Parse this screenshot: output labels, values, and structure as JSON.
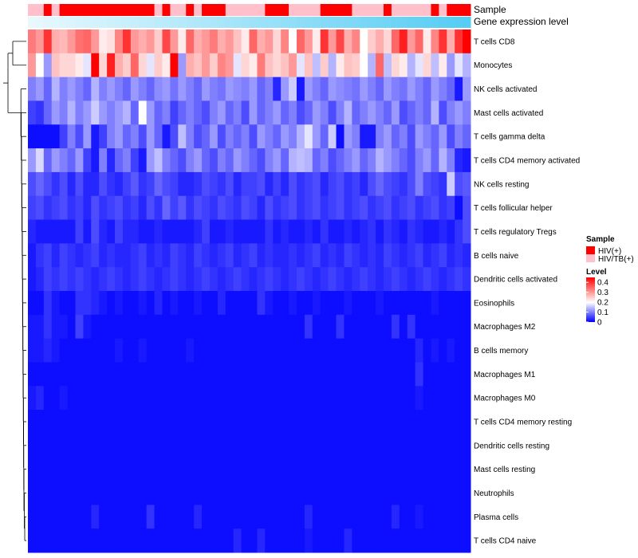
{
  "chart_data": {
    "type": "heatmap",
    "annotation_labels": {
      "sample": "Sample",
      "gene_expression": "Gene expression level"
    },
    "legend": {
      "sample_title": "Sample",
      "sample_entries": [
        {
          "label": "HIV(+)",
          "color": "#ff0000"
        },
        {
          "label": "HIV/TB(+)",
          "color": "#ffc0cb"
        }
      ],
      "level_title": "Level",
      "level_ticks": [
        "0.4",
        "0.3",
        "0.2",
        "0.1",
        "0"
      ],
      "level_range": [
        0,
        0.45
      ]
    },
    "color_scale": {
      "low": "#0000ff",
      "mid": "#ffffff",
      "high": "#ff0000",
      "mid_value": 0.2,
      "max_value": 0.45
    },
    "expression_gradient": [
      "#e9f8fd",
      "#55cdf4"
    ],
    "rows": [
      "T cells CD8",
      "Monocytes",
      "NK cells activated",
      "Mast cells activated",
      "T cells gamma delta",
      "T cells CD4 memory activated",
      "NK cells resting",
      "T cells follicular helper",
      "T cells regulatory  Tregs",
      "B cells naive",
      "Dendritic cells activated",
      "Eosinophils",
      "Macrophages M2",
      "B cells memory",
      "Macrophages M1",
      "Macrophages M0",
      "T cells CD4 memory resting",
      "Dendritic cells resting",
      "Mast cells resting",
      "Neutrophils",
      "Plasma cells",
      "T cells CD4 naive"
    ],
    "sample_groups": [
      "HIV/TB(+)",
      "HIV/TB(+)",
      "HIV(+)",
      "HIV/TB(+)",
      "HIV(+)",
      "HIV(+)",
      "HIV(+)",
      "HIV(+)",
      "HIV(+)",
      "HIV(+)",
      "HIV(+)",
      "HIV(+)",
      "HIV(+)",
      "HIV(+)",
      "HIV(+)",
      "HIV(+)",
      "HIV/TB(+)",
      "HIV(+)",
      "HIV/TB(+)",
      "HIV/TB(+)",
      "HIV(+)",
      "HIV/TB(+)",
      "HIV(+)",
      "HIV(+)",
      "HIV(+)",
      "HIV/TB(+)",
      "HIV/TB(+)",
      "HIV/TB(+)",
      "HIV/TB(+)",
      "HIV/TB(+)",
      "HIV(+)",
      "HIV(+)",
      "HIV(+)",
      "HIV/TB(+)",
      "HIV/TB(+)",
      "HIV/TB(+)",
      "HIV/TB(+)",
      "HIV(+)",
      "HIV(+)",
      "HIV(+)",
      "HIV(+)",
      "HIV/TB(+)",
      "HIV/TB(+)",
      "HIV/TB(+)",
      "HIV/TB(+)",
      "HIV(+)",
      "HIV/TB(+)",
      "HIV/TB(+)",
      "HIV/TB(+)",
      "HIV/TB(+)",
      "HIV/TB(+)",
      "HIV(+)",
      "HIV/TB(+)",
      "HIV(+)",
      "HIV(+)",
      "HIV(+)"
    ],
    "values": [
      [
        0.33,
        0.3,
        0.4,
        0.28,
        0.27,
        0.3,
        0.34,
        0.35,
        0.3,
        0.22,
        0.23,
        0.32,
        0.4,
        0.3,
        0.28,
        0.3,
        0.25,
        0.38,
        0.3,
        0.22,
        0.35,
        0.28,
        0.3,
        0.33,
        0.28,
        0.3,
        0.26,
        0.22,
        0.35,
        0.28,
        0.3,
        0.24,
        0.32,
        0.2,
        0.35,
        0.3,
        0.22,
        0.4,
        0.3,
        0.38,
        0.28,
        0.32,
        0.2,
        0.25,
        0.28,
        0.24,
        0.35,
        0.42,
        0.3,
        0.35,
        0.22,
        0.32,
        0.4,
        0.28,
        0.4,
        0.45
      ],
      [
        0.3,
        0.2,
        0.12,
        0.26,
        0.24,
        0.24,
        0.22,
        0.18,
        0.45,
        0.24,
        0.42,
        0.28,
        0.25,
        0.35,
        0.24,
        0.18,
        0.25,
        0.22,
        0.45,
        0.12,
        0.28,
        0.26,
        0.3,
        0.25,
        0.32,
        0.3,
        0.18,
        0.24,
        0.22,
        0.33,
        0.26,
        0.24,
        0.26,
        0.3,
        0.18,
        0.26,
        0.15,
        0.25,
        0.14,
        0.22,
        0.26,
        0.25,
        0.2,
        0.14,
        0.35,
        0.15,
        0.24,
        0.22,
        0.14,
        0.18,
        0.24,
        0.15,
        0.22,
        0.12,
        0.18,
        0.14
      ],
      [
        0.1,
        0.12,
        0.08,
        0.14,
        0.1,
        0.12,
        0.1,
        0.08,
        0.14,
        0.1,
        0.12,
        0.1,
        0.08,
        0.12,
        0.1,
        0.08,
        0.11,
        0.12,
        0.09,
        0.12,
        0.1,
        0.08,
        0.12,
        0.1,
        0.09,
        0.12,
        0.11,
        0.1,
        0.12,
        0.08,
        0.1,
        0.03,
        0.12,
        0.16,
        0.02,
        0.12,
        0.1,
        0.08,
        0.12,
        0.11,
        0.1,
        0.09,
        0.12,
        0.1,
        0.08,
        0.12,
        0.1,
        0.09,
        0.12,
        0.1,
        0.08,
        0.12,
        0.1,
        0.08,
        0.02,
        0.12
      ],
      [
        0.05,
        0.04,
        0.08,
        0.12,
        0.1,
        0.14,
        0.1,
        0.12,
        0.16,
        0.12,
        0.1,
        0.12,
        0.14,
        0.08,
        0.2,
        0.12,
        0.08,
        0.1,
        0.05,
        0.08,
        0.1,
        0.08,
        0.06,
        0.1,
        0.12,
        0.08,
        0.1,
        0.06,
        0.12,
        0.08,
        0.1,
        0.12,
        0.08,
        0.1,
        0.06,
        0.08,
        0.12,
        0.1,
        0.06,
        0.1,
        0.14,
        0.08,
        0.1,
        0.12,
        0.1,
        0.08,
        0.12,
        0.06,
        0.08,
        0.1,
        0.08,
        0.14,
        0.06,
        0.1,
        0.12,
        0.1
      ],
      [
        0.01,
        0.01,
        0.01,
        0.01,
        0.05,
        0.1,
        0.06,
        0.12,
        0.02,
        0.05,
        0.1,
        0.12,
        0.08,
        0.1,
        0.06,
        0.12,
        0.08,
        0.02,
        0.06,
        0.15,
        0.1,
        0.06,
        0.08,
        0.12,
        0.06,
        0.1,
        0.08,
        0.1,
        0.06,
        0.12,
        0.1,
        0.08,
        0.12,
        0.1,
        0.14,
        0.18,
        0.12,
        0.08,
        0.16,
        0.01,
        0.12,
        0.1,
        0.02,
        0.02,
        0.1,
        0.12,
        0.08,
        0.1,
        0.06,
        0.12,
        0.1,
        0.08,
        0.12,
        0.06,
        0.1,
        0.08
      ],
      [
        0.12,
        0.17,
        0.08,
        0.12,
        0.1,
        0.08,
        0.12,
        0.05,
        0.02,
        0.1,
        0.03,
        0.08,
        0.1,
        0.05,
        0.02,
        0.12,
        0.15,
        0.1,
        0.08,
        0.06,
        0.1,
        0.12,
        0.08,
        0.06,
        0.1,
        0.08,
        0.12,
        0.1,
        0.08,
        0.06,
        0.1,
        0.12,
        0.08,
        0.14,
        0.15,
        0.14,
        0.08,
        0.1,
        0.06,
        0.08,
        0.1,
        0.12,
        0.08,
        0.1,
        0.14,
        0.12,
        0.1,
        0.08,
        0.06,
        0.1,
        0.12,
        0.08,
        0.14,
        0.1,
        0.03,
        0.02
      ],
      [
        0.06,
        0.08,
        0.06,
        0.04,
        0.06,
        0.03,
        0.06,
        0.03,
        0.03,
        0.06,
        0.04,
        0.03,
        0.05,
        0.07,
        0.04,
        0.05,
        0.08,
        0.06,
        0.05,
        0.03,
        0.03,
        0.04,
        0.06,
        0.05,
        0.04,
        0.06,
        0.03,
        0.05,
        0.05,
        0.06,
        0.03,
        0.05,
        0.03,
        0.06,
        0.04,
        0.05,
        0.06,
        0.03,
        0.05,
        0.06,
        0.04,
        0.05,
        0.03,
        0.06,
        0.08,
        0.06,
        0.05,
        0.04,
        0.06,
        0.1,
        0.06,
        0.05,
        0.04,
        0.16,
        0.06,
        0.07
      ],
      [
        0.05,
        0.06,
        0.04,
        0.05,
        0.06,
        0.04,
        0.05,
        0.03,
        0.06,
        0.04,
        0.05,
        0.06,
        0.04,
        0.05,
        0.03,
        0.06,
        0.04,
        0.08,
        0.05,
        0.07,
        0.04,
        0.06,
        0.05,
        0.04,
        0.06,
        0.05,
        0.04,
        0.06,
        0.05,
        0.03,
        0.06,
        0.04,
        0.05,
        0.06,
        0.04,
        0.05,
        0.06,
        0.04,
        0.05,
        0.06,
        0.04,
        0.05,
        0.06,
        0.04,
        0.05,
        0.06,
        0.04,
        0.05,
        0.06,
        0.04,
        0.05,
        0.06,
        0.04,
        0.05,
        0.01,
        0.06
      ],
      [
        0.03,
        0.02,
        0.02,
        0.02,
        0.02,
        0.02,
        0.05,
        0.02,
        0.06,
        0.03,
        0.02,
        0.05,
        0.03,
        0.03,
        0.02,
        0.02,
        0.03,
        0.02,
        0.02,
        0.02,
        0.02,
        0.03,
        0.05,
        0.02,
        0.02,
        0.03,
        0.02,
        0.02,
        0.02,
        0.02,
        0.04,
        0.02,
        0.03,
        0.02,
        0.02,
        0.03,
        0.02,
        0.04,
        0.02,
        0.02,
        0.03,
        0.02,
        0.03,
        0.04,
        0.02,
        0.04,
        0.03,
        0.02,
        0.04,
        0.03,
        0.02,
        0.02,
        0.03,
        0.02,
        0.04,
        0.06
      ],
      [
        0.02,
        0.04,
        0.05,
        0.03,
        0.05,
        0.04,
        0.03,
        0.04,
        0.05,
        0.03,
        0.04,
        0.03,
        0.03,
        0.04,
        0.05,
        0.03,
        0.04,
        0.03,
        0.05,
        0.04,
        0.03,
        0.05,
        0.04,
        0.03,
        0.04,
        0.05,
        0.03,
        0.04,
        0.05,
        0.03,
        0.04,
        0.03,
        0.03,
        0.04,
        0.03,
        0.04,
        0.05,
        0.03,
        0.04,
        0.03,
        0.05,
        0.04,
        0.03,
        0.04,
        0.03,
        0.05,
        0.04,
        0.03,
        0.04,
        0.05,
        0.03,
        0.04,
        0.05,
        0.03,
        0.04,
        0.03
      ],
      [
        0.02,
        0.03,
        0.05,
        0.04,
        0.05,
        0.04,
        0.05,
        0.04,
        0.03,
        0.04,
        0.05,
        0.04,
        0.03,
        0.04,
        0.05,
        0.04,
        0.03,
        0.04,
        0.05,
        0.04,
        0.03,
        0.04,
        0.05,
        0.04,
        0.03,
        0.04,
        0.05,
        0.04,
        0.03,
        0.04,
        0.05,
        0.04,
        0.03,
        0.04,
        0.05,
        0.04,
        0.03,
        0.04,
        0.05,
        0.04,
        0.03,
        0.04,
        0.05,
        0.04,
        0.03,
        0.04,
        0.05,
        0.04,
        0.03,
        0.04,
        0.05,
        0.04,
        0.03,
        0.04,
        0.05,
        0.04
      ],
      [
        0.01,
        0.01,
        0.04,
        0.02,
        0.01,
        0.01,
        0.04,
        0.04,
        0.03,
        0.02,
        0.01,
        0.02,
        0.01,
        0.01,
        0.02,
        0.01,
        0.03,
        0.01,
        0.02,
        0.01,
        0.01,
        0.02,
        0.01,
        0.01,
        0.03,
        0.01,
        0.01,
        0.01,
        0.01,
        0.04,
        0.02,
        0.01,
        0.01,
        0.02,
        0.01,
        0.01,
        0.02,
        0.01,
        0.01,
        0.01,
        0.02,
        0.01,
        0.01,
        0.01,
        0.02,
        0.01,
        0.01,
        0.01,
        0.01,
        0.01,
        0.01,
        0.02,
        0.01,
        0.01,
        0.01,
        0.01
      ],
      [
        0.02,
        0.02,
        0.04,
        0.02,
        0.02,
        0.01,
        0.05,
        0.02,
        0.01,
        0.01,
        0.01,
        0.01,
        0.01,
        0.01,
        0.01,
        0.01,
        0.01,
        0.01,
        0.01,
        0.01,
        0.01,
        0.01,
        0.01,
        0.01,
        0.01,
        0.01,
        0.01,
        0.01,
        0.01,
        0.01,
        0.01,
        0.01,
        0.01,
        0.01,
        0.01,
        0.04,
        0.01,
        0.01,
        0.01,
        0.04,
        0.01,
        0.01,
        0.01,
        0.01,
        0.01,
        0.01,
        0.04,
        0.01,
        0.04,
        0.01,
        0.01,
        0.01,
        0.01,
        0.01,
        0.01,
        0.01
      ],
      [
        0.02,
        0.02,
        0.03,
        0.02,
        0.01,
        0.01,
        0.01,
        0.01,
        0.01,
        0.01,
        0.01,
        0.02,
        0.01,
        0.01,
        0.02,
        0.01,
        0.01,
        0.01,
        0.01,
        0.01,
        0.02,
        0.01,
        0.01,
        0.01,
        0.01,
        0.01,
        0.01,
        0.01,
        0.01,
        0.01,
        0.01,
        0.01,
        0.01,
        0.01,
        0.01,
        0.01,
        0.01,
        0.01,
        0.01,
        0.01,
        0.01,
        0.01,
        0.01,
        0.01,
        0.01,
        0.01,
        0.01,
        0.01,
        0.01,
        0.03,
        0.01,
        0.02,
        0.01,
        0.02,
        0.01,
        0.01
      ],
      [
        0.01,
        0.01,
        0.01,
        0.01,
        0.01,
        0.01,
        0.01,
        0.01,
        0.01,
        0.01,
        0.01,
        0.01,
        0.01,
        0.01,
        0.01,
        0.01,
        0.01,
        0.01,
        0.01,
        0.01,
        0.01,
        0.01,
        0.01,
        0.01,
        0.01,
        0.01,
        0.01,
        0.01,
        0.01,
        0.01,
        0.01,
        0.01,
        0.01,
        0.01,
        0.01,
        0.01,
        0.01,
        0.01,
        0.01,
        0.01,
        0.01,
        0.01,
        0.01,
        0.01,
        0.01,
        0.01,
        0.01,
        0.01,
        0.01,
        0.04,
        0.01,
        0.01,
        0.01,
        0.01,
        0.01,
        0.01
      ],
      [
        0.02,
        0.03,
        0.01,
        0.01,
        0.02,
        0.01,
        0.01,
        0.01,
        0.01,
        0.01,
        0.01,
        0.01,
        0.01,
        0.01,
        0.01,
        0.01,
        0.01,
        0.01,
        0.01,
        0.01,
        0.01,
        0.01,
        0.01,
        0.01,
        0.01,
        0.01,
        0.01,
        0.01,
        0.01,
        0.01,
        0.01,
        0.01,
        0.01,
        0.01,
        0.01,
        0.01,
        0.01,
        0.01,
        0.01,
        0.01,
        0.01,
        0.01,
        0.01,
        0.01,
        0.01,
        0.01,
        0.01,
        0.01,
        0.01,
        0.02,
        0.01,
        0.01,
        0.01,
        0.01,
        0.01,
        0.01
      ],
      [
        0.01,
        0.01,
        0.01,
        0.01,
        0.01,
        0.01,
        0.01,
        0.01,
        0.01,
        0.01,
        0.01,
        0.01,
        0.01,
        0.01,
        0.01,
        0.01,
        0.01,
        0.01,
        0.01,
        0.01,
        0.01,
        0.01,
        0.01,
        0.01,
        0.01,
        0.01,
        0.01,
        0.01,
        0.01,
        0.01,
        0.01,
        0.01,
        0.01,
        0.01,
        0.01,
        0.01,
        0.01,
        0.01,
        0.01,
        0.01,
        0.01,
        0.01,
        0.01,
        0.01,
        0.01,
        0.01,
        0.01,
        0.01,
        0.01,
        0.01,
        0.01,
        0.01,
        0.01,
        0.01,
        0.01,
        0.01
      ],
      [
        0.01,
        0.01,
        0.01,
        0.01,
        0.01,
        0.01,
        0.01,
        0.01,
        0.01,
        0.01,
        0.01,
        0.01,
        0.01,
        0.01,
        0.01,
        0.01,
        0.01,
        0.01,
        0.01,
        0.01,
        0.01,
        0.01,
        0.01,
        0.01,
        0.01,
        0.01,
        0.01,
        0.01,
        0.01,
        0.01,
        0.01,
        0.01,
        0.01,
        0.01,
        0.01,
        0.01,
        0.01,
        0.01,
        0.01,
        0.01,
        0.01,
        0.01,
        0.01,
        0.01,
        0.01,
        0.01,
        0.01,
        0.01,
        0.01,
        0.01,
        0.01,
        0.01,
        0.01,
        0.01,
        0.01,
        0.01
      ],
      [
        0.01,
        0.01,
        0.01,
        0.01,
        0.01,
        0.01,
        0.01,
        0.01,
        0.01,
        0.01,
        0.01,
        0.01,
        0.01,
        0.01,
        0.01,
        0.01,
        0.01,
        0.01,
        0.01,
        0.01,
        0.01,
        0.01,
        0.01,
        0.01,
        0.01,
        0.01,
        0.01,
        0.01,
        0.01,
        0.01,
        0.01,
        0.01,
        0.01,
        0.01,
        0.01,
        0.01,
        0.01,
        0.01,
        0.01,
        0.01,
        0.01,
        0.01,
        0.01,
        0.01,
        0.01,
        0.01,
        0.01,
        0.01,
        0.01,
        0.01,
        0.01,
        0.01,
        0.01,
        0.01,
        0.01,
        0.01
      ],
      [
        0.01,
        0.01,
        0.01,
        0.01,
        0.01,
        0.01,
        0.01,
        0.01,
        0.01,
        0.01,
        0.01,
        0.01,
        0.01,
        0.01,
        0.01,
        0.01,
        0.01,
        0.01,
        0.01,
        0.01,
        0.01,
        0.01,
        0.01,
        0.01,
        0.01,
        0.01,
        0.01,
        0.01,
        0.01,
        0.01,
        0.01,
        0.01,
        0.01,
        0.01,
        0.01,
        0.01,
        0.01,
        0.01,
        0.01,
        0.01,
        0.01,
        0.01,
        0.01,
        0.01,
        0.01,
        0.01,
        0.01,
        0.01,
        0.01,
        0.01,
        0.01,
        0.01,
        0.01,
        0.01,
        0.01,
        0.01
      ],
      [
        0.01,
        0.01,
        0.01,
        0.01,
        0.01,
        0.01,
        0.01,
        0.01,
        0.03,
        0.01,
        0.01,
        0.01,
        0.01,
        0.01,
        0.01,
        0.04,
        0.01,
        0.01,
        0.01,
        0.01,
        0.01,
        0.03,
        0.01,
        0.01,
        0.01,
        0.01,
        0.01,
        0.01,
        0.01,
        0.01,
        0.01,
        0.01,
        0.01,
        0.01,
        0.01,
        0.03,
        0.01,
        0.01,
        0.01,
        0.01,
        0.01,
        0.01,
        0.01,
        0.01,
        0.01,
        0.01,
        0.03,
        0.01,
        0.01,
        0.02,
        0.01,
        0.01,
        0.01,
        0.01,
        0.01,
        0.01
      ],
      [
        0.01,
        0.01,
        0.01,
        0.01,
        0.01,
        0.01,
        0.01,
        0.01,
        0.01,
        0.01,
        0.01,
        0.01,
        0.01,
        0.01,
        0.01,
        0.01,
        0.01,
        0.01,
        0.01,
        0.01,
        0.01,
        0.01,
        0.01,
        0.01,
        0.01,
        0.01,
        0.03,
        0.01,
        0.01,
        0.03,
        0.01,
        0.01,
        0.01,
        0.01,
        0.01,
        0.02,
        0.01,
        0.01,
        0.01,
        0.01,
        0.03,
        0.01,
        0.01,
        0.01,
        0.01,
        0.01,
        0.01,
        0.01,
        0.01,
        0.01,
        0.01,
        0.01,
        0.01,
        0.01,
        0.01,
        0.01
      ]
    ]
  }
}
